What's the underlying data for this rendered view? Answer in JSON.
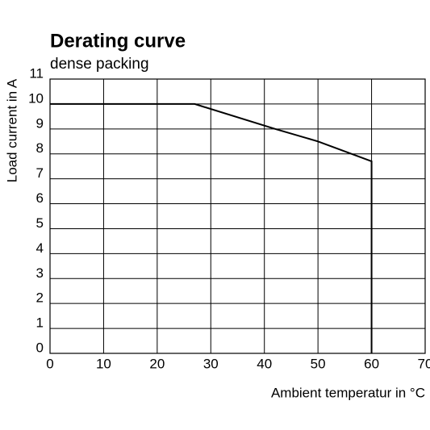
{
  "chart_data": {
    "type": "line",
    "title": "Derating curve",
    "subtitle": "dense packing",
    "x_label": "Ambient temperatur in °C",
    "y_label": "Load  current in A",
    "x": [
      0,
      27,
      42,
      50,
      60,
      60
    ],
    "series": [
      {
        "color": "#000000",
        "values": [
          10,
          10,
          9,
          8.5,
          7.7,
          0
        ]
      }
    ],
    "xlim": [
      0,
      70
    ],
    "xticks": [
      0,
      10,
      20,
      30,
      40,
      50,
      60,
      70
    ],
    "ylim": [
      0,
      11
    ],
    "yticks": [
      0,
      1,
      2,
      3,
      4,
      5,
      6,
      7,
      8,
      9,
      10,
      11
    ],
    "grid": true
  }
}
